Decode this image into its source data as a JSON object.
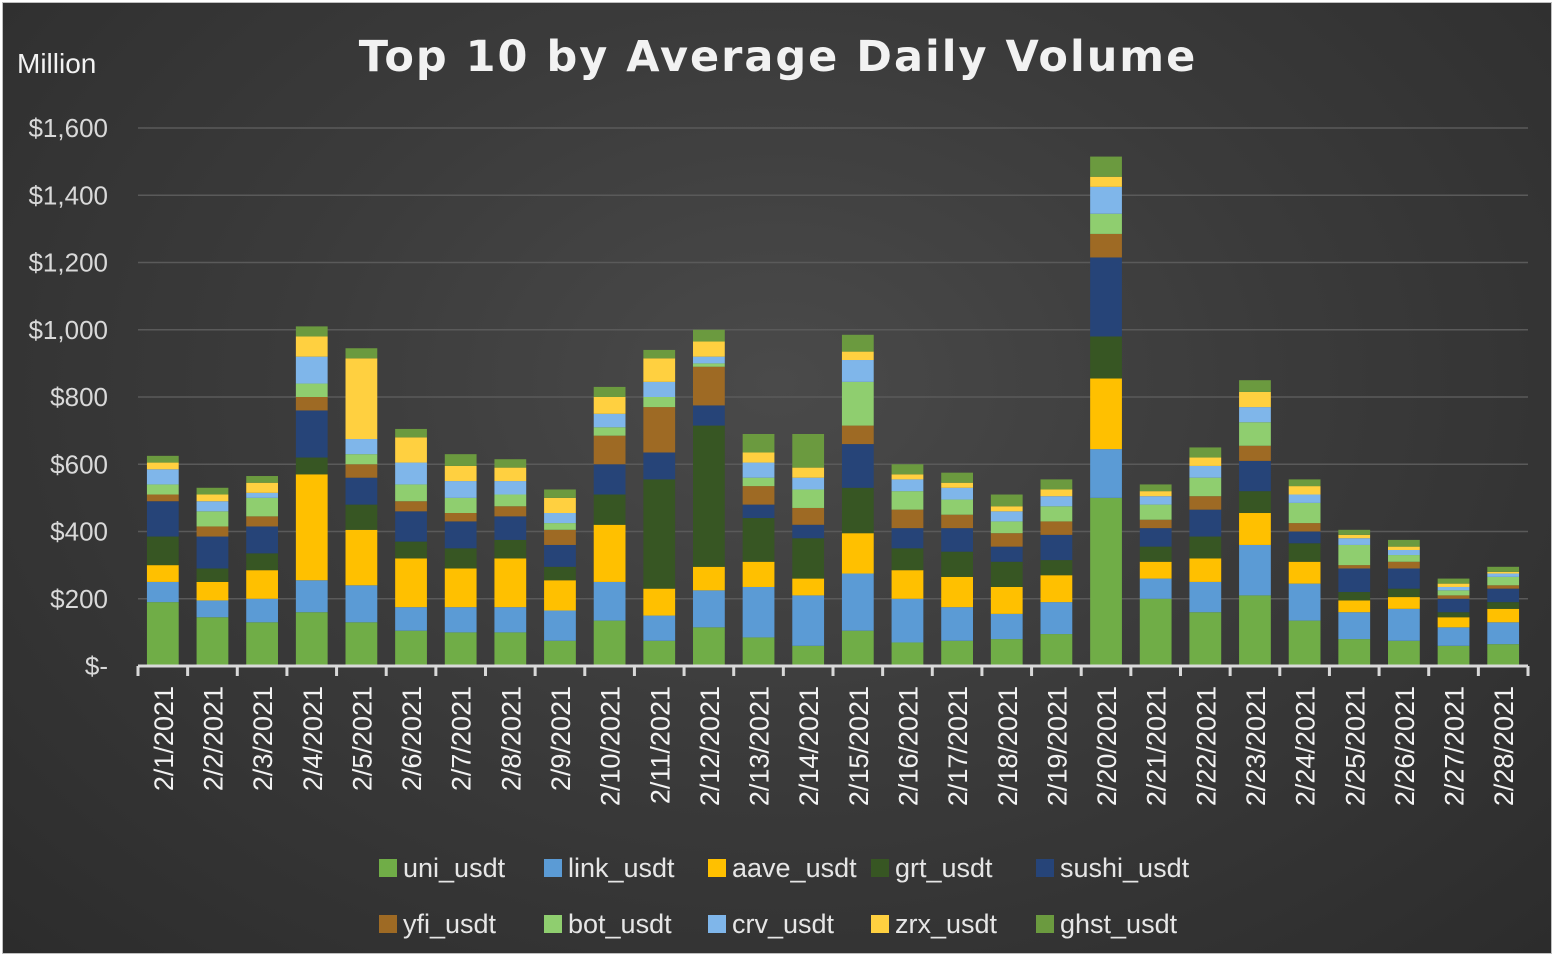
{
  "chart_data": {
    "type": "bar",
    "stacked": true,
    "title": "Top 10 by Average Daily Volume",
    "unit_label": "Million",
    "y_ticks": [
      "$1,600",
      "$1,400",
      "$1,200",
      "$1,000",
      "$800",
      "$600",
      "$400",
      "$200",
      "$-"
    ],
    "ylim": [
      0,
      1600
    ],
    "grid": true,
    "legend_position": "bottom",
    "categories": [
      "2/1/2021",
      "2/2/2021",
      "2/3/2021",
      "2/4/2021",
      "2/5/2021",
      "2/6/2021",
      "2/7/2021",
      "2/8/2021",
      "2/9/2021",
      "2/10/2021",
      "2/11/2021",
      "2/12/2021",
      "2/13/2021",
      "2/14/2021",
      "2/15/2021",
      "2/16/2021",
      "2/17/2021",
      "2/18/2021",
      "2/19/2021",
      "2/20/2021",
      "2/21/2021",
      "2/22/2021",
      "2/23/2021",
      "2/24/2021",
      "2/25/2021",
      "2/26/2021",
      "2/27/2021",
      "2/28/2021"
    ],
    "series": [
      {
        "name": "uni_usdt",
        "color": "#70ad47",
        "values": [
          190,
          145,
          130,
          160,
          130,
          105,
          100,
          100,
          75,
          135,
          75,
          115,
          85,
          60,
          105,
          70,
          75,
          80,
          95,
          500,
          200,
          160,
          210,
          135,
          80,
          75,
          60,
          65
        ]
      },
      {
        "name": "link_usdt",
        "color": "#5b9bd5",
        "values": [
          60,
          50,
          70,
          95,
          110,
          70,
          75,
          75,
          90,
          115,
          75,
          110,
          150,
          150,
          170,
          130,
          100,
          75,
          95,
          145,
          60,
          90,
          150,
          110,
          80,
          95,
          55,
          65
        ]
      },
      {
        "name": "aave_usdt",
        "color": "#ffc000",
        "values": [
          50,
          55,
          85,
          315,
          165,
          145,
          115,
          145,
          90,
          170,
          80,
          70,
          75,
          50,
          120,
          85,
          90,
          80,
          80,
          210,
          50,
          70,
          95,
          65,
          35,
          35,
          30,
          40
        ]
      },
      {
        "name": "grt_usdt",
        "color": "#375623",
        "values": [
          85,
          40,
          50,
          50,
          75,
          50,
          60,
          55,
          40,
          90,
          325,
          420,
          130,
          120,
          135,
          65,
          75,
          75,
          45,
          125,
          45,
          65,
          65,
          55,
          25,
          25,
          15,
          20
        ]
      },
      {
        "name": "sushi_usdt",
        "color": "#264478",
        "values": [
          105,
          95,
          80,
          140,
          80,
          90,
          80,
          70,
          65,
          90,
          80,
          60,
          40,
          40,
          130,
          60,
          70,
          45,
          75,
          235,
          55,
          80,
          90,
          35,
          70,
          60,
          40,
          40
        ]
      },
      {
        "name": "yfi_usdt",
        "color": "#9e6a24",
        "values": [
          20,
          30,
          30,
          40,
          40,
          30,
          25,
          30,
          45,
          85,
          135,
          115,
          55,
          50,
          55,
          55,
          40,
          40,
          40,
          70,
          25,
          40,
          45,
          25,
          10,
          20,
          10,
          10
        ]
      },
      {
        "name": "bot_usdt",
        "color": "#8fce6f",
        "values": [
          30,
          45,
          55,
          40,
          30,
          50,
          45,
          35,
          20,
          25,
          30,
          10,
          25,
          55,
          130,
          55,
          45,
          35,
          45,
          60,
          45,
          55,
          70,
          60,
          60,
          20,
          15,
          25
        ]
      },
      {
        "name": "crv_usdt",
        "color": "#7fb6ea",
        "values": [
          45,
          30,
          15,
          80,
          45,
          65,
          50,
          40,
          30,
          40,
          45,
          20,
          45,
          35,
          65,
          35,
          35,
          30,
          30,
          80,
          25,
          35,
          45,
          25,
          20,
          15,
          10,
          10
        ]
      },
      {
        "name": "zrx_usdt",
        "color": "#ffd040",
        "values": [
          20,
          20,
          30,
          60,
          240,
          75,
          45,
          40,
          45,
          50,
          70,
          45,
          30,
          30,
          25,
          15,
          15,
          15,
          20,
          30,
          15,
          25,
          45,
          25,
          10,
          10,
          10,
          5
        ]
      },
      {
        "name": "ghst_usdt",
        "color": "#6b9a3f",
        "values": [
          20,
          20,
          20,
          30,
          30,
          25,
          35,
          25,
          25,
          30,
          25,
          35,
          55,
          100,
          50,
          30,
          30,
          35,
          30,
          60,
          20,
          30,
          35,
          20,
          15,
          20,
          15,
          15
        ]
      }
    ]
  }
}
